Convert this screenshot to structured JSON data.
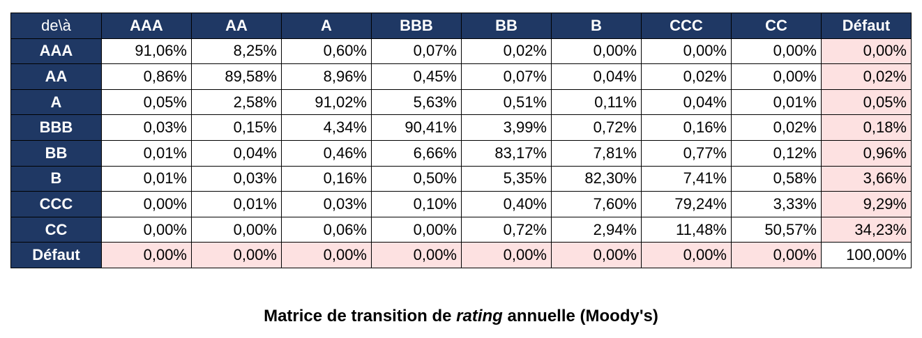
{
  "table": {
    "corner_label": "de\\à",
    "columns": [
      "AAA",
      "AA",
      "A",
      "BBB",
      "BB",
      "B",
      "CCC",
      "CC",
      "Défaut"
    ],
    "rows": [
      {
        "label": "AAA",
        "cells": [
          "91,06%",
          "8,25%",
          "0,60%",
          "0,07%",
          "0,02%",
          "0,00%",
          "0,00%",
          "0,00%",
          "0,00%"
        ]
      },
      {
        "label": "AA",
        "cells": [
          "0,86%",
          "89,58%",
          "8,96%",
          "0,45%",
          "0,07%",
          "0,04%",
          "0,02%",
          "0,00%",
          "0,02%"
        ]
      },
      {
        "label": "A",
        "cells": [
          "0,05%",
          "2,58%",
          "91,02%",
          "5,63%",
          "0,51%",
          "0,11%",
          "0,04%",
          "0,01%",
          "0,05%"
        ]
      },
      {
        "label": "BBB",
        "cells": [
          "0,03%",
          "0,15%",
          "4,34%",
          "90,41%",
          "3,99%",
          "0,72%",
          "0,16%",
          "0,02%",
          "0,18%"
        ]
      },
      {
        "label": "BB",
        "cells": [
          "0,01%",
          "0,04%",
          "0,46%",
          "6,66%",
          "83,17%",
          "7,81%",
          "0,77%",
          "0,12%",
          "0,96%"
        ]
      },
      {
        "label": "B",
        "cells": [
          "0,01%",
          "0,03%",
          "0,16%",
          "0,50%",
          "5,35%",
          "82,30%",
          "7,41%",
          "0,58%",
          "3,66%"
        ]
      },
      {
        "label": "CCC",
        "cells": [
          "0,00%",
          "0,01%",
          "0,03%",
          "0,10%",
          "0,40%",
          "7,60%",
          "79,24%",
          "3,33%",
          "9,29%"
        ]
      },
      {
        "label": "CC",
        "cells": [
          "0,00%",
          "0,00%",
          "0,06%",
          "0,00%",
          "0,72%",
          "2,94%",
          "11,48%",
          "50,57%",
          "34,23%"
        ]
      },
      {
        "label": "Défaut",
        "cells": [
          "0,00%",
          "0,00%",
          "0,00%",
          "0,00%",
          "0,00%",
          "0,00%",
          "0,00%",
          "0,00%",
          "100,00%"
        ]
      }
    ]
  },
  "caption": {
    "before": "Matrice de transition de ",
    "italic": "rating",
    "after": " annuelle (Moody's)"
  },
  "colors": {
    "header_background": "#1f3864",
    "header_text": "#ffffff",
    "default_highlight": "#fde1e1"
  }
}
